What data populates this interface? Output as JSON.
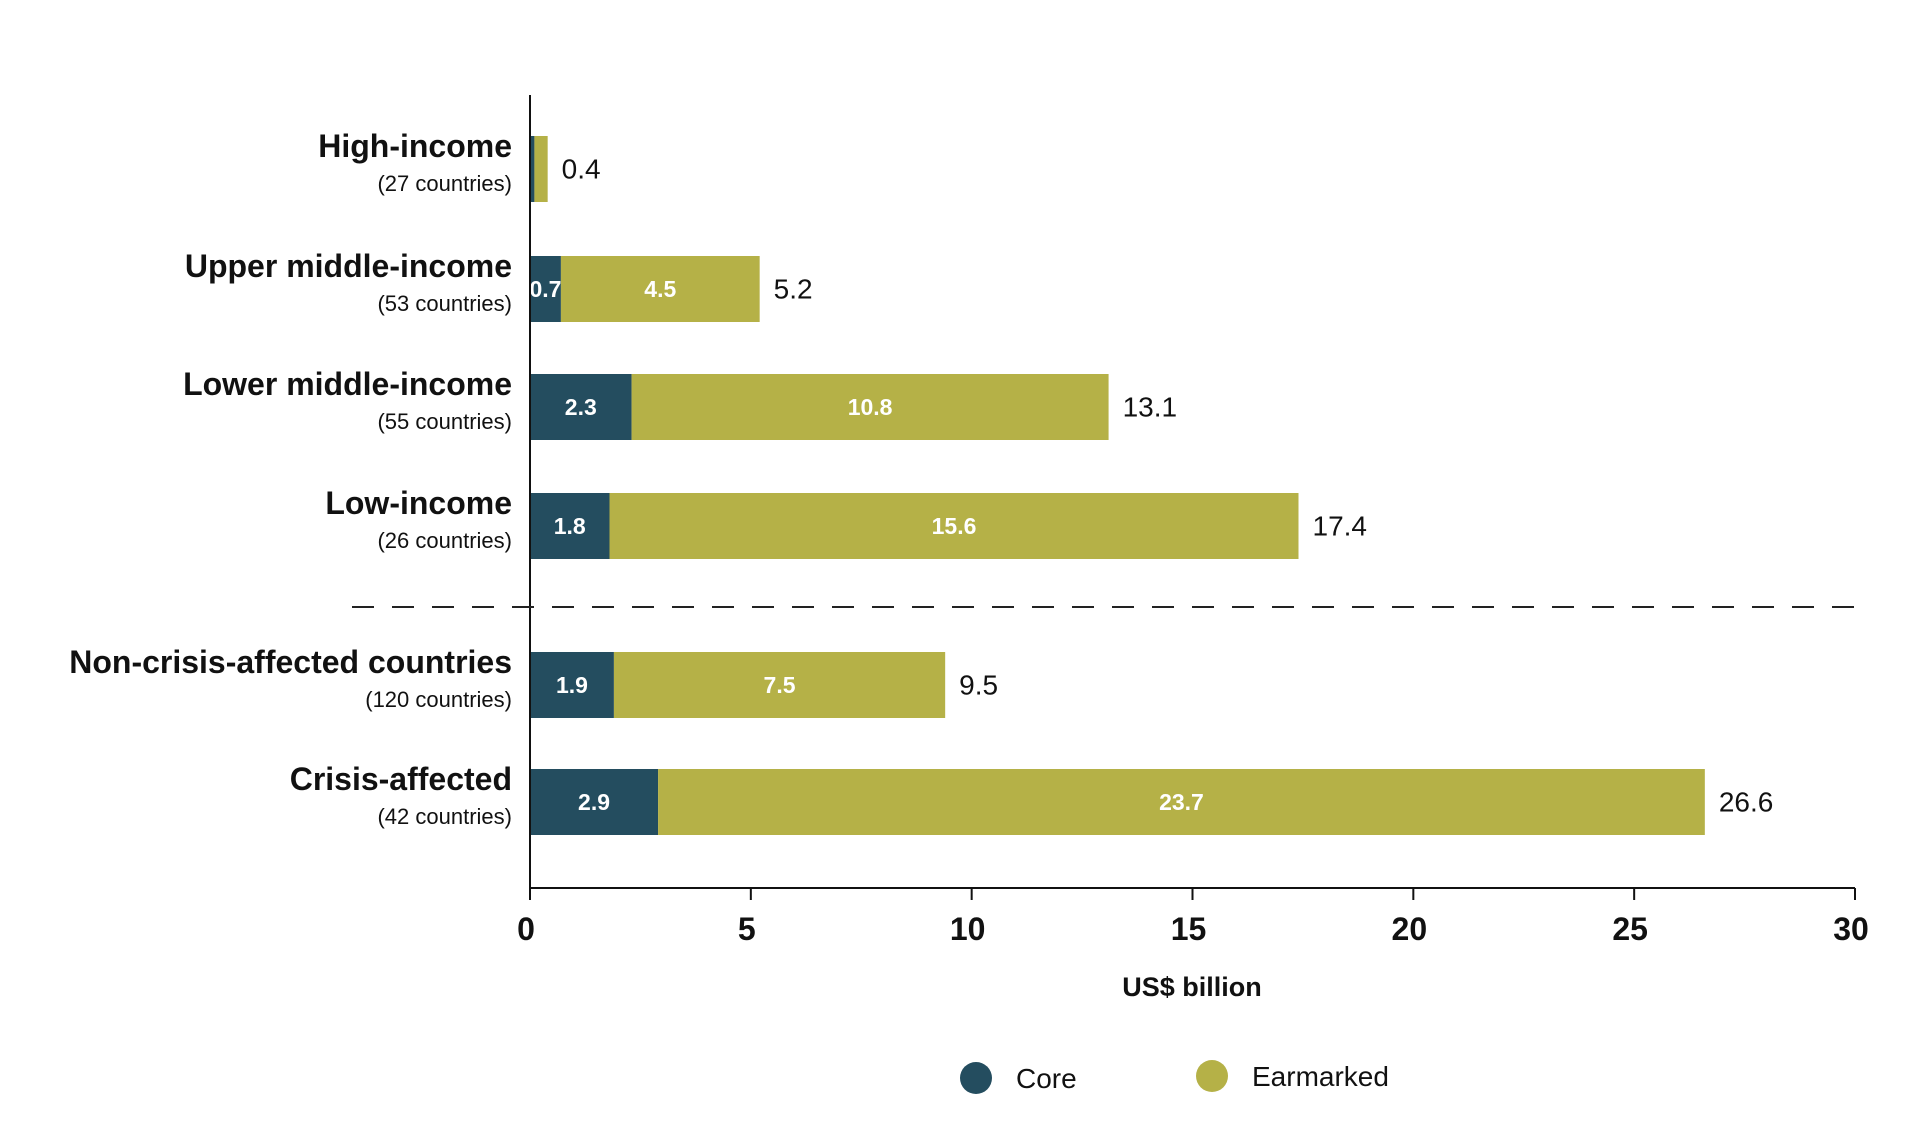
{
  "chart_data": {
    "type": "bar",
    "orientation": "horizontal",
    "stacked": true,
    "categories": [
      {
        "name": "High-income",
        "sub": "(27 countries)"
      },
      {
        "name": "Upper middle-income",
        "sub": "(53 countries)"
      },
      {
        "name": "Lower middle-income",
        "sub": "(55 countries)"
      },
      {
        "name": "Low-income",
        "sub": "(26 countries)"
      },
      {
        "name": "Non-crisis-affected countries",
        "sub": "(120 countries)"
      },
      {
        "name": "Crisis-affected",
        "sub": "(42 countries)"
      }
    ],
    "series": [
      {
        "name": "Core",
        "color": "#244d5f",
        "values": [
          0.1,
          0.7,
          2.3,
          1.8,
          1.9,
          2.9
        ],
        "labels": [
          "",
          "0.7",
          "2.3",
          "1.8",
          "1.9",
          "2.9"
        ]
      },
      {
        "name": "Earmarked",
        "color": "#b5b147",
        "values": [
          0.3,
          4.5,
          10.8,
          15.6,
          7.5,
          23.7
        ],
        "labels": [
          "",
          "4.5",
          "10.8",
          "15.6",
          "7.5",
          "23.7"
        ]
      }
    ],
    "totals": [
      "0.4",
      "5.2",
      "13.1",
      "17.4",
      "9.5",
      "26.6"
    ],
    "xlabel": "US$ billion",
    "xlim": [
      0,
      30
    ],
    "xticks": [
      "0",
      "5",
      "10",
      "15",
      "20",
      "25",
      "30"
    ],
    "separator": "dashed line between Low-income and Non-crisis-affected countries",
    "grid": false,
    "legend_position": "bottom-center"
  }
}
